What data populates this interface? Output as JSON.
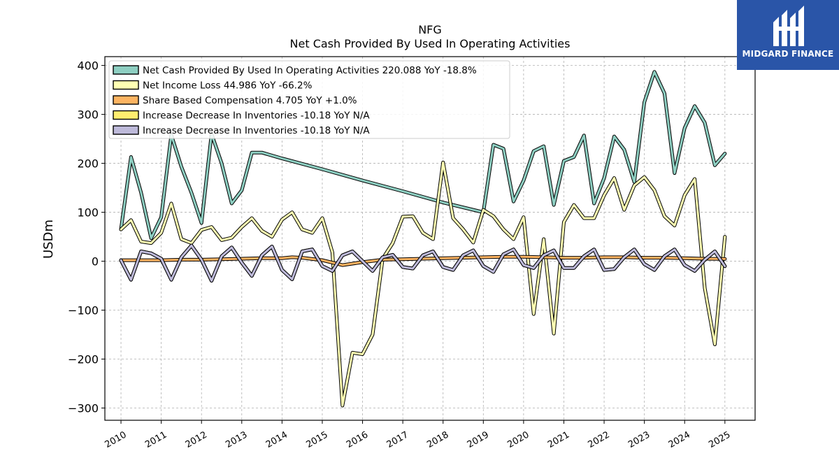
{
  "brand": {
    "name": "MIDGARD FINANCE",
    "color": "#2a55a8"
  },
  "chart_data": {
    "type": "line",
    "title": "NFG",
    "subtitle": "Net Cash Provided By Used In Operating Activities",
    "xlabel": "",
    "ylabel": "USDm",
    "xlim": [
      2009.6,
      2025.75
    ],
    "ylim": [
      -325,
      418
    ],
    "x_ticks": [
      "2010",
      "2011",
      "2012",
      "2013",
      "2014",
      "2015",
      "2016",
      "2017",
      "2018",
      "2019",
      "2020",
      "2021",
      "2022",
      "2023",
      "2024",
      "2025"
    ],
    "y_ticks": [
      -300,
      -200,
      -100,
      0,
      100,
      200,
      300,
      400
    ],
    "y_tick_labels": [
      "−300",
      "−200",
      "−100",
      "0",
      "100",
      "200",
      "300",
      "400"
    ],
    "grid": true,
    "legend_position": "top-left",
    "series": [
      {
        "name": "Net Cash Provided By Used In Operating Activities  220.088 YoY -18.8%",
        "color": "#8ecfc2",
        "points": [
          [
            2010.0,
            65
          ],
          [
            2010.25,
            213
          ],
          [
            2010.5,
            140
          ],
          [
            2010.75,
            47
          ],
          [
            2011.0,
            90
          ],
          [
            2011.25,
            258
          ],
          [
            2011.5,
            193
          ],
          [
            2011.75,
            140
          ],
          [
            2012.0,
            78
          ],
          [
            2012.25,
            260
          ],
          [
            2012.5,
            200
          ],
          [
            2012.75,
            118
          ],
          [
            2013.0,
            145
          ],
          [
            2013.25,
            222
          ],
          [
            2013.5,
            222
          ],
          [
            2014.0,
            210
          ],
          [
            2015.0,
            188
          ],
          [
            2016.0,
            165
          ],
          [
            2017.0,
            143
          ],
          [
            2018.0,
            120
          ],
          [
            2019.0,
            100
          ],
          [
            2019.25,
            238
          ],
          [
            2019.5,
            230
          ],
          [
            2019.75,
            122
          ],
          [
            2020.0,
            165
          ],
          [
            2020.25,
            225
          ],
          [
            2020.5,
            235
          ],
          [
            2020.75,
            115
          ],
          [
            2021.0,
            205
          ],
          [
            2021.25,
            213
          ],
          [
            2021.5,
            257
          ],
          [
            2021.75,
            118
          ],
          [
            2022.0,
            170
          ],
          [
            2022.25,
            255
          ],
          [
            2022.5,
            228
          ],
          [
            2022.75,
            162
          ],
          [
            2023.0,
            325
          ],
          [
            2023.25,
            387
          ],
          [
            2023.5,
            343
          ],
          [
            2023.75,
            180
          ],
          [
            2024.0,
            272
          ],
          [
            2024.25,
            317
          ],
          [
            2024.5,
            283
          ],
          [
            2024.75,
            196
          ],
          [
            2025.0,
            220
          ]
        ]
      },
      {
        "name": "Net Income Loss  44.986 YoY -66.2%",
        "color": "#ffffb3",
        "points": [
          [
            2010.0,
            65
          ],
          [
            2010.25,
            84
          ],
          [
            2010.5,
            40
          ],
          [
            2010.75,
            37
          ],
          [
            2011.0,
            58
          ],
          [
            2011.25,
            118
          ],
          [
            2011.5,
            45
          ],
          [
            2011.75,
            37
          ],
          [
            2012.0,
            64
          ],
          [
            2012.25,
            70
          ],
          [
            2012.5,
            43
          ],
          [
            2012.75,
            48
          ],
          [
            2013.0,
            70
          ],
          [
            2013.25,
            88
          ],
          [
            2013.5,
            62
          ],
          [
            2013.75,
            50
          ],
          [
            2014.0,
            85
          ],
          [
            2014.25,
            100
          ],
          [
            2014.5,
            65
          ],
          [
            2014.75,
            58
          ],
          [
            2015.0,
            88
          ],
          [
            2015.25,
            18
          ],
          [
            2015.5,
            -295
          ],
          [
            2015.75,
            -187
          ],
          [
            2016.0,
            -190
          ],
          [
            2016.25,
            -150
          ],
          [
            2016.5,
            5
          ],
          [
            2016.75,
            37
          ],
          [
            2017.0,
            91
          ],
          [
            2017.25,
            92
          ],
          [
            2017.5,
            58
          ],
          [
            2017.75,
            45
          ],
          [
            2018.0,
            202
          ],
          [
            2018.25,
            88
          ],
          [
            2018.5,
            65
          ],
          [
            2018.75,
            38
          ],
          [
            2019.0,
            105
          ],
          [
            2019.25,
            92
          ],
          [
            2019.5,
            65
          ],
          [
            2019.75,
            45
          ],
          [
            2020.0,
            90
          ],
          [
            2020.25,
            -108
          ],
          [
            2020.5,
            45
          ],
          [
            2020.75,
            -148
          ],
          [
            2021.0,
            80
          ],
          [
            2021.25,
            115
          ],
          [
            2021.5,
            88
          ],
          [
            2021.75,
            88
          ],
          [
            2022.0,
            135
          ],
          [
            2022.25,
            170
          ],
          [
            2022.5,
            105
          ],
          [
            2022.75,
            155
          ],
          [
            2023.0,
            172
          ],
          [
            2023.25,
            145
          ],
          [
            2023.5,
            92
          ],
          [
            2023.75,
            73
          ],
          [
            2024.0,
            135
          ],
          [
            2024.25,
            168
          ],
          [
            2024.5,
            -55
          ],
          [
            2024.75,
            -170
          ],
          [
            2025.0,
            50
          ]
        ]
      },
      {
        "name": "Share Based Compensation  4.705 YoY +1.0%",
        "color": "#fdb462",
        "points": [
          [
            2010.0,
            2
          ],
          [
            2010.5,
            2
          ],
          [
            2011.0,
            2
          ],
          [
            2011.5,
            3
          ],
          [
            2012.0,
            3
          ],
          [
            2012.5,
            4
          ],
          [
            2013.0,
            5
          ],
          [
            2013.5,
            6
          ],
          [
            2014.0,
            6
          ],
          [
            2014.25,
            8
          ],
          [
            2014.5,
            7
          ],
          [
            2015.0,
            2
          ],
          [
            2015.5,
            -8
          ],
          [
            2016.0,
            -2
          ],
          [
            2016.5,
            3
          ],
          [
            2017.0,
            4
          ],
          [
            2017.5,
            5
          ],
          [
            2018.0,
            6
          ],
          [
            2018.5,
            7
          ],
          [
            2019.0,
            8
          ],
          [
            2019.5,
            9
          ],
          [
            2020.0,
            9
          ],
          [
            2020.5,
            8
          ],
          [
            2021.0,
            7
          ],
          [
            2021.5,
            7
          ],
          [
            2022.0,
            8
          ],
          [
            2022.5,
            8
          ],
          [
            2023.0,
            7
          ],
          [
            2023.5,
            7
          ],
          [
            2024.0,
            6
          ],
          [
            2024.5,
            5
          ],
          [
            2025.0,
            4.7
          ]
        ]
      },
      {
        "name": "Increase Decrease In Inventories  -10.18 YoY N/A",
        "color": "#ffed6f",
        "points": [
          [
            2010.0,
            2
          ],
          [
            2010.25,
            -38
          ],
          [
            2010.5,
            20
          ],
          [
            2010.75,
            16
          ],
          [
            2011.0,
            5
          ],
          [
            2011.25,
            -38
          ],
          [
            2011.5,
            8
          ],
          [
            2011.75,
            32
          ],
          [
            2012.0,
            3
          ],
          [
            2012.25,
            -40
          ],
          [
            2012.5,
            10
          ],
          [
            2012.75,
            28
          ],
          [
            2013.0,
            -3
          ],
          [
            2013.25,
            -30
          ],
          [
            2013.5,
            12
          ],
          [
            2013.75,
            30
          ],
          [
            2014.0,
            -18
          ],
          [
            2014.25,
            -37
          ],
          [
            2014.5,
            20
          ],
          [
            2014.75,
            24
          ],
          [
            2015.0,
            -10
          ],
          [
            2015.25,
            -20
          ],
          [
            2015.5,
            12
          ],
          [
            2015.75,
            20
          ],
          [
            2016.0,
            0
          ],
          [
            2016.25,
            -20
          ],
          [
            2016.5,
            8
          ],
          [
            2016.75,
            13
          ],
          [
            2017.0,
            -12
          ],
          [
            2017.25,
            -15
          ],
          [
            2017.5,
            12
          ],
          [
            2017.75,
            20
          ],
          [
            2018.0,
            -12
          ],
          [
            2018.25,
            -18
          ],
          [
            2018.5,
            12
          ],
          [
            2018.75,
            22
          ],
          [
            2019.0,
            -10
          ],
          [
            2019.25,
            -22
          ],
          [
            2019.5,
            14
          ],
          [
            2019.75,
            24
          ],
          [
            2020.0,
            -8
          ],
          [
            2020.25,
            -14
          ],
          [
            2020.5,
            12
          ],
          [
            2020.75,
            22
          ],
          [
            2021.0,
            -14
          ],
          [
            2021.25,
            -14
          ],
          [
            2021.5,
            10
          ],
          [
            2021.75,
            24
          ],
          [
            2022.0,
            -18
          ],
          [
            2022.25,
            -16
          ],
          [
            2022.5,
            8
          ],
          [
            2022.75,
            24
          ],
          [
            2023.0,
            -6
          ],
          [
            2023.25,
            -18
          ],
          [
            2023.5,
            10
          ],
          [
            2023.75,
            24
          ],
          [
            2024.0,
            -8
          ],
          [
            2024.25,
            -20
          ],
          [
            2024.5,
            3
          ],
          [
            2024.75,
            20
          ],
          [
            2025.0,
            -10.18
          ]
        ]
      },
      {
        "name": "Increase Decrease In Inventories  -10.18 YoY N/A",
        "color": "#bebada",
        "points": [
          [
            2010.0,
            2
          ],
          [
            2010.25,
            -38
          ],
          [
            2010.5,
            20
          ],
          [
            2010.75,
            16
          ],
          [
            2011.0,
            5
          ],
          [
            2011.25,
            -38
          ],
          [
            2011.5,
            8
          ],
          [
            2011.75,
            32
          ],
          [
            2012.0,
            3
          ],
          [
            2012.25,
            -40
          ],
          [
            2012.5,
            10
          ],
          [
            2012.75,
            28
          ],
          [
            2013.0,
            -3
          ],
          [
            2013.25,
            -30
          ],
          [
            2013.5,
            12
          ],
          [
            2013.75,
            30
          ],
          [
            2014.0,
            -18
          ],
          [
            2014.25,
            -37
          ],
          [
            2014.5,
            20
          ],
          [
            2014.75,
            24
          ],
          [
            2015.0,
            -10
          ],
          [
            2015.25,
            -20
          ],
          [
            2015.5,
            12
          ],
          [
            2015.75,
            20
          ],
          [
            2016.0,
            0
          ],
          [
            2016.25,
            -20
          ],
          [
            2016.5,
            8
          ],
          [
            2016.75,
            13
          ],
          [
            2017.0,
            -12
          ],
          [
            2017.25,
            -15
          ],
          [
            2017.5,
            12
          ],
          [
            2017.75,
            20
          ],
          [
            2018.0,
            -12
          ],
          [
            2018.25,
            -18
          ],
          [
            2018.5,
            12
          ],
          [
            2018.75,
            22
          ],
          [
            2019.0,
            -10
          ],
          [
            2019.25,
            -22
          ],
          [
            2019.5,
            14
          ],
          [
            2019.75,
            24
          ],
          [
            2020.0,
            -8
          ],
          [
            2020.25,
            -14
          ],
          [
            2020.5,
            12
          ],
          [
            2020.75,
            22
          ],
          [
            2021.0,
            -14
          ],
          [
            2021.25,
            -14
          ],
          [
            2021.5,
            10
          ],
          [
            2021.75,
            24
          ],
          [
            2022.0,
            -18
          ],
          [
            2022.25,
            -16
          ],
          [
            2022.5,
            8
          ],
          [
            2022.75,
            24
          ],
          [
            2023.0,
            -6
          ],
          [
            2023.25,
            -18
          ],
          [
            2023.5,
            10
          ],
          [
            2023.75,
            24
          ],
          [
            2024.0,
            -8
          ],
          [
            2024.25,
            -20
          ],
          [
            2024.5,
            3
          ],
          [
            2024.75,
            20
          ],
          [
            2025.0,
            -10.18
          ]
        ]
      }
    ]
  }
}
